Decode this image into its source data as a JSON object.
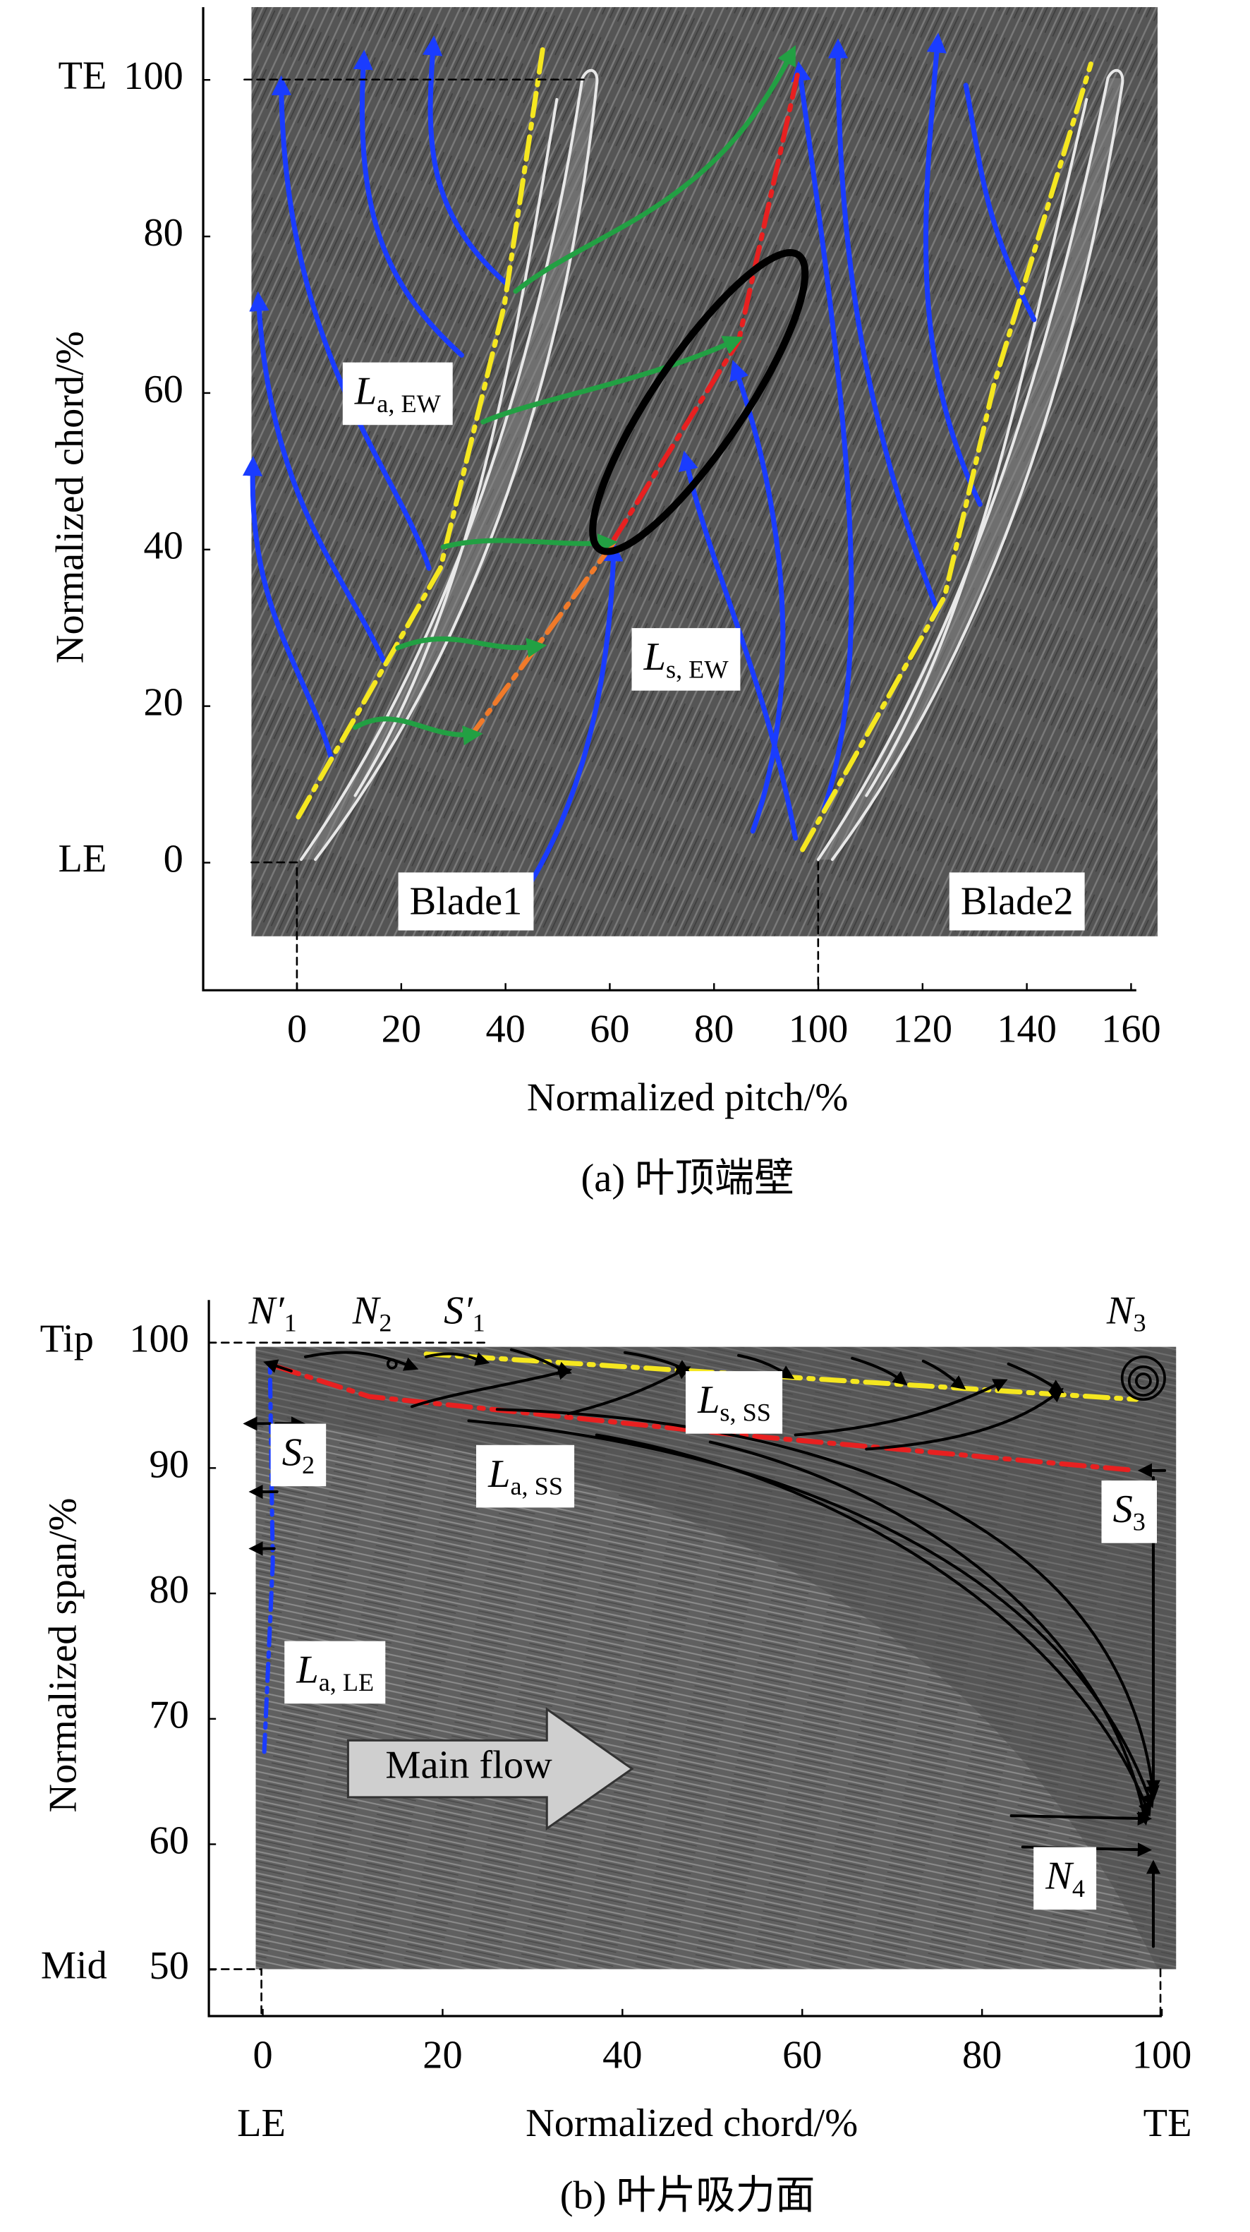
{
  "chart_data": [
    {
      "type": "flow-visualization",
      "xlabel": "Normalized pitch/%",
      "ylabel": "Normalized chord/%",
      "caption": "(a) 叶顶端壁",
      "xlim": [
        -18,
        161
      ],
      "ylim": [
        -16.3,
        109.3
      ],
      "xticks": [
        0,
        20,
        40,
        60,
        80,
        100,
        120,
        140,
        160
      ],
      "yticks": [
        0,
        20,
        40,
        60,
        80,
        100
      ],
      "annotations": [
        {
          "text": "TE"
        },
        {
          "text": "LE"
        },
        {
          "main": "L",
          "sub": "a, EW"
        },
        {
          "main": "L",
          "sub": "s, EW"
        },
        {
          "text": "Blade1"
        },
        {
          "text": "Blade2"
        }
      ]
    },
    {
      "type": "flow-visualization",
      "xlabel": "Normalized chord/%",
      "ylabel": "Normalized span/%",
      "caption": "(b) 叶片吸力面",
      "xlim": [
        -6,
        100
      ],
      "ylim": [
        46.3,
        103.4
      ],
      "xticks": [
        0,
        20,
        40,
        60,
        80,
        100
      ],
      "yticks": [
        50,
        60,
        70,
        80,
        90,
        100
      ],
      "annotations": [
        {
          "text": "Tip"
        },
        {
          "text": "Mid"
        },
        {
          "text": "LE"
        },
        {
          "text": "TE"
        },
        {
          "main": "N′",
          "sub": "1"
        },
        {
          "main": "N",
          "sub": "2"
        },
        {
          "main": "S′",
          "sub": "1"
        },
        {
          "main": "N",
          "sub": "3"
        },
        {
          "main": "L",
          "sub": "s, SS"
        },
        {
          "main": "L",
          "sub": "a, SS"
        },
        {
          "main": "S",
          "sub": "2"
        },
        {
          "main": "S",
          "sub": "3"
        },
        {
          "main": "L",
          "sub": "a, LE"
        },
        {
          "main": "N",
          "sub": "4"
        },
        {
          "text": "Main flow"
        }
      ]
    }
  ]
}
